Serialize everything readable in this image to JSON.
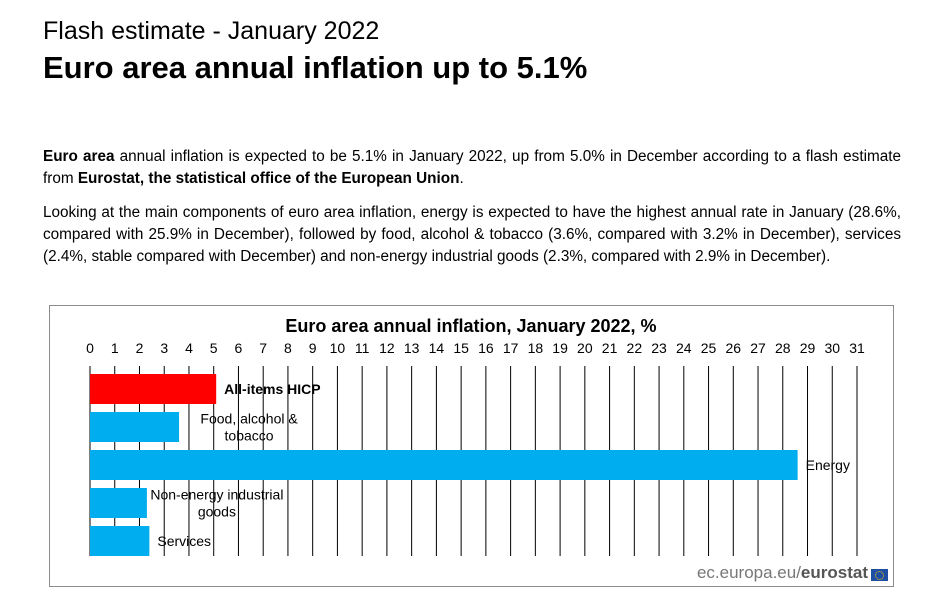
{
  "header": {
    "kicker": "Flash estimate - January 2022",
    "headline": "Euro area annual inflation up to 5.1%"
  },
  "body": {
    "p1_lead_bold": "Euro area",
    "p1_mid": " annual inflation is expected to be 5.1% in January 2022, up from 5.0% in December according to a flash estimate from ",
    "p1_source_bold": "Eurostat, the statistical office of the European Union",
    "p1_end": ".",
    "p2": "Looking at the main components of euro area inflation, energy is expected to have the highest annual rate in January (28.6%, compared with 25.9% in December), followed by food, alcohol & tobacco (3.6%, compared with 3.2% in December), services (2.4%, stable compared with December) and non-energy industrial goods (2.3%, compared with 2.9% in December)."
  },
  "chart_data": {
    "type": "bar",
    "orientation": "horizontal",
    "title": "Euro area annual inflation, January 2022, %",
    "xlim": [
      0,
      31
    ],
    "xticks": [
      0,
      1,
      2,
      3,
      4,
      5,
      6,
      7,
      8,
      9,
      10,
      11,
      12,
      13,
      14,
      15,
      16,
      17,
      18,
      19,
      20,
      21,
      22,
      23,
      24,
      25,
      26,
      27,
      28,
      29,
      30,
      31
    ],
    "grid": true,
    "categories": [
      {
        "label_lines": [
          "All-items HICP"
        ],
        "bold": true
      },
      {
        "label_lines": [
          "Food, alcohol &",
          "tobacco"
        ],
        "bold": false
      },
      {
        "label_lines": [
          "Energy"
        ],
        "bold": false
      },
      {
        "label_lines": [
          "Non-energy industrial",
          "goods"
        ],
        "bold": false
      },
      {
        "label_lines": [
          "Services"
        ],
        "bold": false
      }
    ],
    "values": [
      5.1,
      3.6,
      28.6,
      2.3,
      2.4
    ],
    "colors": [
      "#ff0000",
      "#00aeef",
      "#00aeef",
      "#00aeef",
      "#00aeef"
    ]
  },
  "footer": {
    "brand_domain": "ec.europa.eu/",
    "brand_name": "eurostat"
  },
  "colors": {
    "highlight": "#ff0000",
    "component": "#00aeef",
    "gridline": "#000000",
    "frame": "#8c8c8c"
  }
}
